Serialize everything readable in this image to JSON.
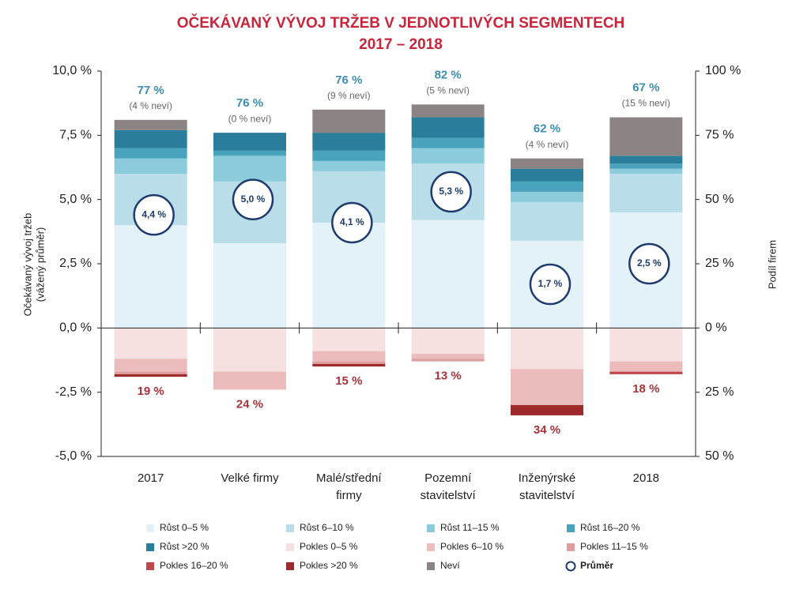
{
  "chart_data": {
    "type": "bar",
    "stacked": true,
    "title": [
      "OČEKÁVANÝ VÝVOJ TRŽEB V JEDNOTLIVÝCH SEGMENTECH",
      "2017 – 2018"
    ],
    "ylabel": [
      "Očekávaný vývoj tržeb",
      "(vážený průměr)"
    ],
    "y2label": "Podíl firem",
    "categories": [
      [
        "2017"
      ],
      [
        "Velké firmy"
      ],
      [
        "Malé/střední",
        "firmy"
      ],
      [
        "Pozemní",
        "stavitelství"
      ],
      [
        "Inženýrské",
        "stavitelství"
      ],
      [
        "2018"
      ]
    ],
    "ylim": [
      -5,
      10
    ],
    "yticks": [
      {
        "value": 10,
        "label": "10,0 %"
      },
      {
        "value": 7.5,
        "label": "7,5 %"
      },
      {
        "value": 5,
        "label": "5,0 %"
      },
      {
        "value": 2.5,
        "label": "2,5 %"
      },
      {
        "value": 0,
        "label": "0,0 %"
      },
      {
        "value": -2.5,
        "label": "-2,5 %"
      },
      {
        "value": -5,
        "label": "-5,0 %"
      }
    ],
    "y2lim": [
      -50,
      100
    ],
    "y2ticks": [
      {
        "value": 100,
        "label": "100 %"
      },
      {
        "value": 75,
        "label": "75 %"
      },
      {
        "value": 50,
        "label": "50 %"
      },
      {
        "value": 25,
        "label": "25 %"
      },
      {
        "value": 0,
        "label": "0 %"
      },
      {
        "value": -25,
        "label": "25 %"
      },
      {
        "value": -50,
        "label": "50 %"
      }
    ],
    "series": [
      {
        "name": "Růst 0–5 %",
        "color": "#e3f1f8",
        "axis": "y2",
        "values": [
          40,
          33,
          41,
          42,
          34,
          45
        ]
      },
      {
        "name": "Růst 6–10 %",
        "color": "#b9dde9",
        "axis": "y2",
        "values": [
          20,
          24,
          20,
          22,
          15,
          15
        ]
      },
      {
        "name": "Růst 11–15 %",
        "color": "#8ccbdc",
        "axis": "y2",
        "values": [
          6,
          10,
          4,
          6,
          4,
          2
        ]
      },
      {
        "name": "Růst 16–20 %",
        "color": "#4aa3bc",
        "axis": "y2",
        "values": [
          4,
          2,
          4,
          4,
          4,
          2
        ]
      },
      {
        "name": "Růst >20 %",
        "color": "#2a7e9b",
        "axis": "y2",
        "values": [
          7,
          7,
          7,
          8,
          5,
          3
        ]
      },
      {
        "name": "Pokles 0–5 %",
        "color": "#f6e0e0",
        "axis": "y2",
        "values": [
          -12,
          -17,
          -9,
          -10,
          -16,
          -13
        ]
      },
      {
        "name": "Pokles 6–10 %",
        "color": "#ecbcbc",
        "axis": "y2",
        "values": [
          -5,
          -7,
          -4,
          -2,
          -14,
          -4
        ]
      },
      {
        "name": "Pokles 11–15 %",
        "color": "#df9e9e",
        "axis": "y2",
        "values": [
          -1,
          0,
          -1,
          -1,
          0,
          0
        ]
      },
      {
        "name": "Pokles 16–20 %",
        "color": "#c0474a",
        "axis": "y2",
        "values": [
          0,
          0,
          0,
          0,
          0,
          -1
        ]
      },
      {
        "name": "Pokles >20 %",
        "color": "#9e2b2b",
        "axis": "y2",
        "values": [
          -1,
          0,
          -1,
          0,
          -4,
          0
        ]
      },
      {
        "name": "Neví",
        "color": "#8c8484",
        "axis": "y2",
        "values": [
          4,
          0,
          9,
          5,
          4,
          15
        ]
      }
    ],
    "average": {
      "name": "Průměr",
      "color": "#1d3b6e",
      "axis": "y",
      "values": [
        4.4,
        5.0,
        4.1,
        5.3,
        1.7,
        2.5
      ],
      "value_labels": [
        "4,4 %",
        "5,0 %",
        "4,1 %",
        "5,3 %",
        "1,7 %",
        "2,5 %"
      ]
    },
    "growth_labels": [
      "77 %",
      "76 %",
      "76 %",
      "82 %",
      "62 %",
      "67 %"
    ],
    "unknown_labels": [
      "(4 % neví)",
      "(0 % neví)",
      "(9 % neví)",
      "(5 % neví)",
      "(4 % neví)",
      "(15 % neví)"
    ],
    "decline_labels": [
      "19 %",
      "24 %",
      "15 %",
      "13 %",
      "34 %",
      "18 %"
    ]
  }
}
